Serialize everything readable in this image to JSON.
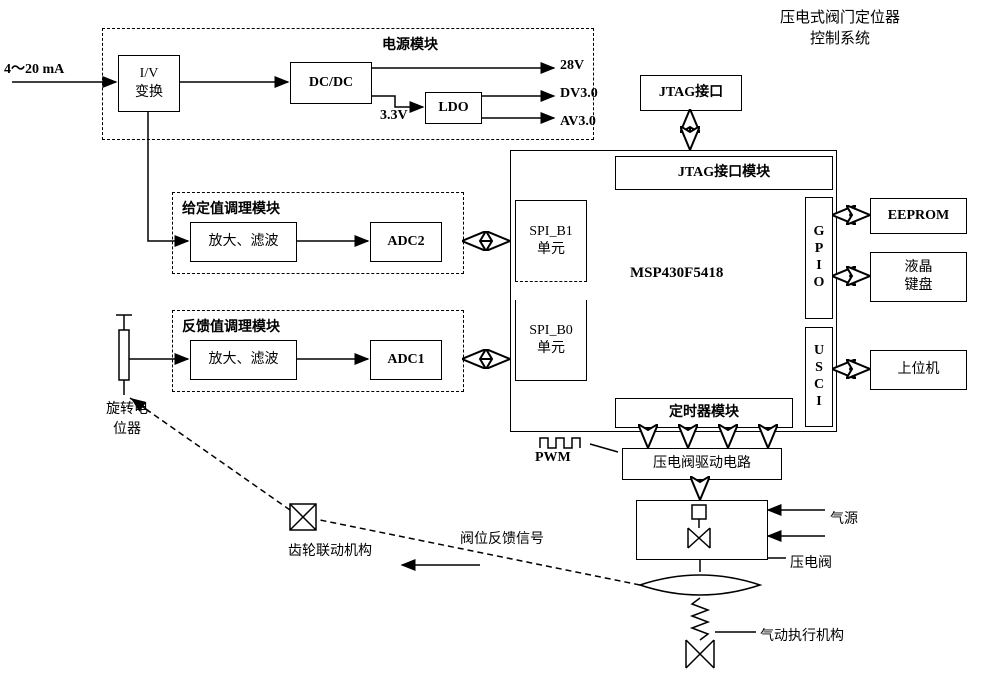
{
  "title": {
    "line1": "压电式阀门定位器",
    "line2": "控制系统"
  },
  "input_signal": "4～20 mA",
  "power": {
    "module_label": "电源模块",
    "iv": "I/V\n变换",
    "dcdc": "DC/DC",
    "v33": "3.3V",
    "ldo": "LDO",
    "v28": "28V",
    "dv30": "DV3.0",
    "av30": "AV3.0"
  },
  "setpoint": {
    "module_label": "给定值调理模块",
    "amp": "放大、滤波",
    "adc": "ADC2"
  },
  "feedback": {
    "module_label": "反馈值调理模块",
    "amp": "放大、滤波",
    "adc": "ADC1"
  },
  "sensor": {
    "label": "旋转电\n位器"
  },
  "gear_label": "齿轮联动机构",
  "feedback_signal_label": "阀位反馈信号",
  "mcu": {
    "name": "MSP430F5418",
    "spi_b1": "SPI_B1\n单元",
    "spi_b0": "SPI_B0\n单元",
    "jtag_mod": "JTAG接口模块",
    "gpio": "G\nP\nI\nO",
    "usci": "U\nS\nC\nI",
    "timer": "定时器模块"
  },
  "jtag": "JTAG接口",
  "eeprom": "EEPROM",
  "lcd": "液晶\n键盘",
  "host": "上位机",
  "pwm": "PWM",
  "driver": "压电阀驱动电路",
  "air_source": "气源",
  "piezo_valve": "压电阀",
  "actuator": "气动执行机构",
  "colors": {
    "stroke": "#000000",
    "bg": "#ffffff"
  }
}
